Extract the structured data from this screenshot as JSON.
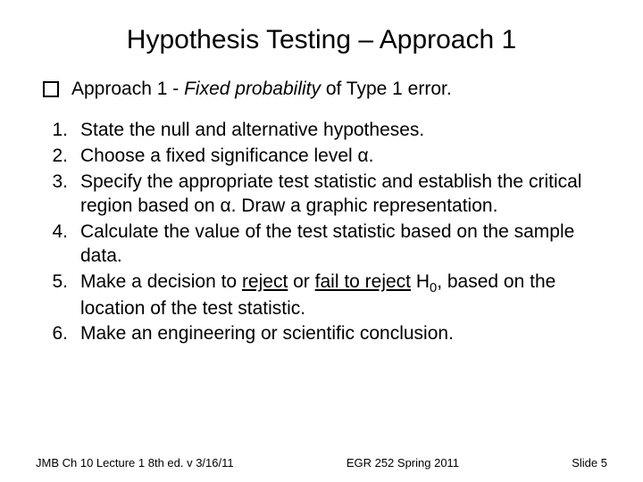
{
  "title": "Hypothesis Testing – Approach 1",
  "bullet": {
    "prefix": "Approach 1 - ",
    "italic": "Fixed probability",
    "suffix": " of Type 1 error."
  },
  "list": [
    {
      "n": "1.",
      "text": "State the null and alternative hypotheses."
    },
    {
      "n": "2.",
      "text": "Choose a fixed significance level α."
    },
    {
      "n": "3.",
      "text": "Specify the appropriate test statistic and establish the critical region based on α. Draw a graphic representation."
    },
    {
      "n": "4.",
      "text": "Calculate the value of the test statistic based on the sample data."
    }
  ],
  "item5": {
    "n": "5.",
    "pre": "Make a decision to ",
    "u1": "reject",
    "mid": " or ",
    "u2": "fail to reject",
    "post1": " H",
    "sub": "0",
    "post2": ", based on the location of the test statistic."
  },
  "item6": {
    "n": "6.",
    "text": "Make an engineering or scientific conclusion."
  },
  "footer": {
    "left": "JMB Ch 10 Lecture 1  8th ed.  v 3/16/11",
    "center": "EGR 252 Spring 2011",
    "right": "Slide 5"
  }
}
